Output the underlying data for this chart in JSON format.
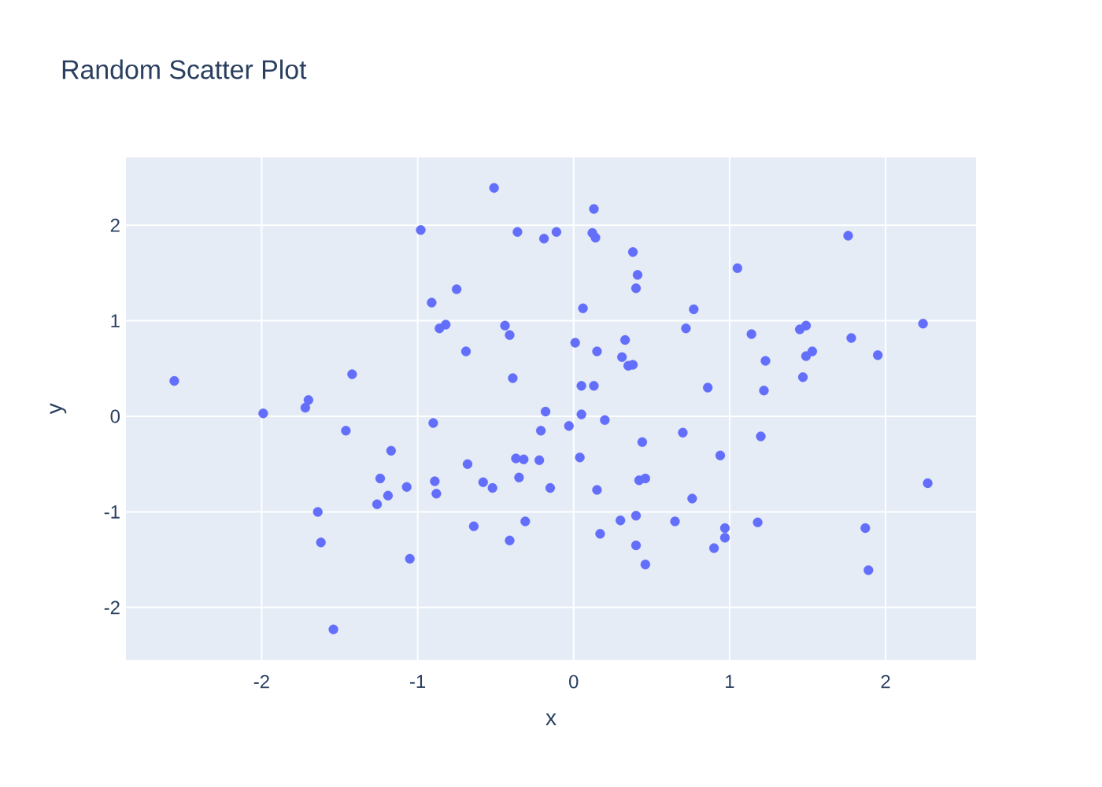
{
  "chart_data": {
    "type": "scatter",
    "title": "Random Scatter Plot",
    "xlabel": "x",
    "ylabel": "y",
    "x": [
      -2.56,
      -1.99,
      -1.72,
      -1.7,
      -1.42,
      -1.46,
      -1.17,
      -1.24,
      -1.07,
      -1.19,
      -1.26,
      -1.64,
      -1.62,
      -1.05,
      -1.54,
      -0.51,
      -0.98,
      -0.36,
      -0.19,
      -0.11,
      0.13,
      0.12,
      0.14,
      0.38,
      0.41,
      0.4,
      0.77,
      -0.75,
      -0.91,
      -0.86,
      -0.82,
      -0.44,
      -0.41,
      -0.69,
      -0.39,
      -0.18,
      0.06,
      0.01,
      0.15,
      0.33,
      0.31,
      0.35,
      0.38,
      0.05,
      0.13,
      0.72,
      0.05,
      1.76,
      1.05,
      1.14,
      1.45,
      1.49,
      1.78,
      2.24,
      1.23,
      1.49,
      1.53,
      1.95,
      1.47,
      0.86,
      1.22,
      -0.9,
      -0.03,
      0.2,
      -0.21,
      0.44,
      0.7,
      -0.68,
      -0.37,
      -0.32,
      -0.22,
      0.04,
      -0.89,
      -0.88,
      -0.58,
      -0.52,
      -0.35,
      -0.15,
      0.15,
      0.42,
      0.46,
      0.76,
      -0.64,
      -0.31,
      -0.41,
      0.17,
      0.3,
      0.4,
      0.4,
      0.46,
      0.65,
      1.2,
      0.94,
      1.18,
      0.97,
      0.97,
      0.9,
      2.27,
      1.87,
      1.89
    ],
    "values": [
      0.37,
      0.03,
      0.09,
      0.17,
      0.44,
      -0.15,
      -0.36,
      -0.65,
      -0.74,
      -0.83,
      -0.92,
      -1.0,
      -1.32,
      -1.49,
      -2.23,
      2.39,
      1.95,
      1.93,
      1.86,
      1.93,
      2.17,
      1.92,
      1.87,
      1.72,
      1.48,
      1.34,
      1.12,
      1.33,
      1.19,
      0.92,
      0.96,
      0.95,
      0.85,
      0.68,
      0.4,
      0.05,
      1.13,
      0.77,
      0.68,
      0.8,
      0.62,
      0.53,
      0.54,
      0.32,
      0.32,
      0.92,
      0.02,
      1.89,
      1.55,
      0.86,
      0.91,
      0.95,
      0.82,
      0.97,
      0.58,
      0.63,
      0.68,
      0.64,
      0.41,
      0.3,
      0.27,
      -0.07,
      -0.1,
      -0.04,
      -0.15,
      -0.27,
      -0.17,
      -0.5,
      -0.44,
      -0.45,
      -0.46,
      -0.43,
      -0.68,
      -0.81,
      -0.69,
      -0.75,
      -0.64,
      -0.75,
      -0.77,
      -0.67,
      -0.65,
      -0.86,
      -1.15,
      -1.1,
      -1.3,
      -1.23,
      -1.09,
      -1.04,
      -1.35,
      -1.55,
      -1.1,
      -0.21,
      -0.41,
      -1.11,
      -1.17,
      -1.27,
      -1.38,
      -0.7,
      -1.17,
      -1.61
    ],
    "color": "#636efa",
    "marker": "circle",
    "grid": true,
    "xlim": [
      -2.87,
      2.58
    ],
    "ylim": [
      -2.55,
      2.71
    ],
    "xticks": [
      -2,
      -1,
      0,
      1,
      2
    ],
    "yticks": [
      -2,
      -1,
      0,
      1,
      2
    ]
  }
}
